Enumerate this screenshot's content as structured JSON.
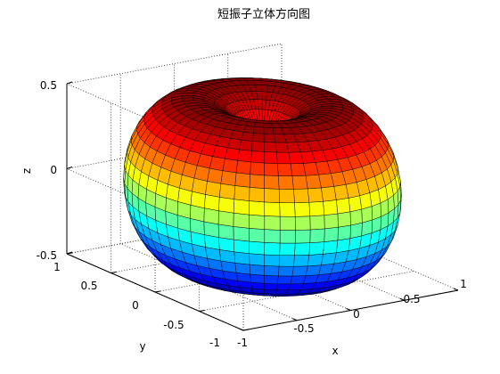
{
  "chart_data": {
    "type": "surface",
    "title": "短振子立体方向图",
    "xlabel": "x",
    "ylabel": "y",
    "zlabel": "z",
    "xlim": [
      -1,
      1
    ],
    "ylim": [
      -1,
      1
    ],
    "zlim": [
      -0.5,
      0.5
    ],
    "xticks": [
      "-1",
      "-0.5",
      "0",
      "0.5",
      "1"
    ],
    "yticks": [
      "-1",
      "-0.5",
      "0",
      "0.5",
      "1"
    ],
    "zticks": [
      "-0.5",
      "0",
      "0.5"
    ],
    "grid": true,
    "colormap": "jet",
    "surface": {
      "description_formula": "r = sin(theta)",
      "theta_range": [
        0,
        180
      ],
      "phi_range": [
        0,
        360
      ]
    }
  }
}
